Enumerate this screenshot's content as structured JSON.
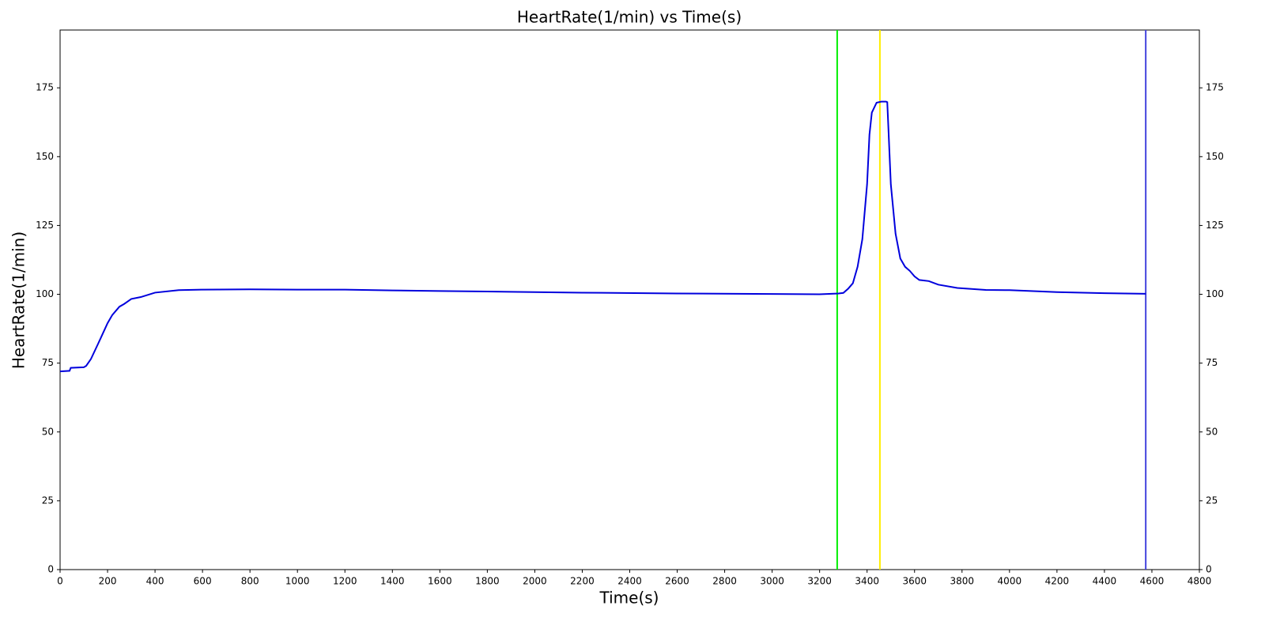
{
  "chart_data": {
    "type": "line",
    "title": "HeartRate(1/min) vs Time(s)",
    "x_label": "Time(s)",
    "y_label": "HeartRate(1/min)",
    "x": [
      0,
      40,
      45,
      100,
      110,
      130,
      160,
      200,
      220,
      250,
      270,
      300,
      340,
      400,
      500,
      600,
      800,
      1000,
      1200,
      1400,
      1600,
      1800,
      2200,
      2600,
      3000,
      3200,
      3280,
      3300,
      3320,
      3340,
      3360,
      3380,
      3400,
      3410,
      3420,
      3440,
      3460,
      3480,
      3485,
      3490,
      3500,
      3520,
      3540,
      3560,
      3580,
      3600,
      3620,
      3660,
      3700,
      3780,
      3900,
      4000,
      4200,
      4400,
      4574
    ],
    "series": [
      {
        "color": "#0000dd",
        "values": [
          72,
          72.2,
          73.3,
          73.5,
          74,
          76.5,
          82,
          89.5,
          92.5,
          95.5,
          96.5,
          98.3,
          99,
          100.6,
          101.5,
          101.7,
          101.8,
          101.7,
          101.7,
          101.4,
          101.2,
          101,
          100.6,
          100.3,
          100.1,
          100,
          100.3,
          100.5,
          102,
          104,
          110,
          120,
          140,
          158,
          166,
          169.6,
          170,
          170,
          169.8,
          160,
          140,
          122,
          113,
          110,
          108.5,
          106.5,
          105.2,
          104.8,
          103.5,
          102.3,
          101.6,
          101.5,
          100.8,
          100.4,
          100.2
        ]
      }
    ],
    "vlines": [
      {
        "x": 3274,
        "color": "#00ee00"
      },
      {
        "x": 3454,
        "color": "#ffee00"
      },
      {
        "x": 4574,
        "color": "#4444dd"
      }
    ],
    "xlim": [
      0,
      4800
    ],
    "xticks": [
      0,
      200,
      400,
      600,
      800,
      1000,
      1200,
      1400,
      1600,
      1800,
      2000,
      2200,
      2400,
      2600,
      2800,
      3000,
      3200,
      3400,
      3600,
      3800,
      4000,
      4200,
      4400,
      4600,
      4800
    ],
    "ylim": [
      0,
      196
    ],
    "yticks": [
      0,
      25,
      50,
      75,
      100,
      125,
      150,
      175
    ],
    "y2lim": [
      0,
      196
    ],
    "y2ticks": [
      0,
      25,
      50,
      75,
      100,
      125,
      150,
      175
    ],
    "grid": false
  }
}
